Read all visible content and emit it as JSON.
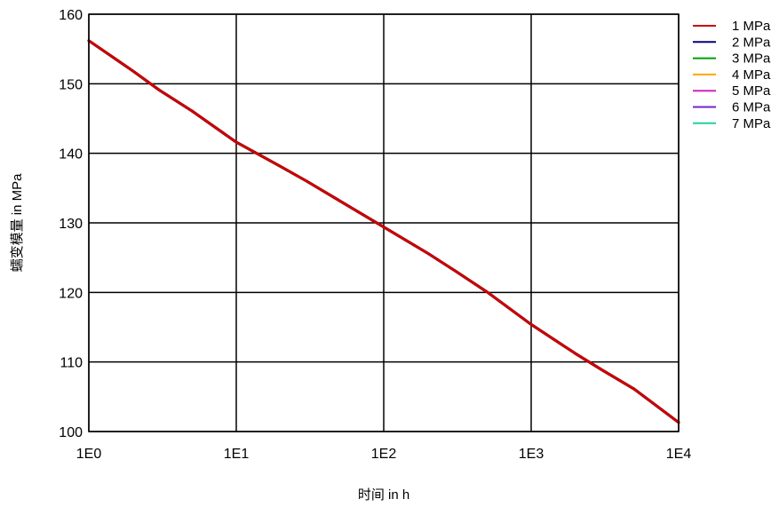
{
  "chart_data": {
    "type": "line",
    "xlabel": "时间 in h",
    "ylabel": "蠕变模量 in MPa",
    "xscale": "log",
    "xlim": [
      1,
      10000
    ],
    "ylim": [
      100,
      160
    ],
    "x_ticks": [
      1,
      10,
      100,
      1000,
      10000
    ],
    "x_tick_labels": [
      "1E0",
      "1E1",
      "1E2",
      "1E3",
      "1E4"
    ],
    "y_ticks": [
      100,
      110,
      120,
      130,
      140,
      150,
      160
    ],
    "y_tick_labels": [
      "100",
      "110",
      "120",
      "130",
      "140",
      "150",
      "160"
    ],
    "grid": true,
    "legend_position": "top-right, outside plot",
    "series": [
      {
        "name": "1 MPa",
        "color": "#cc0000"
      },
      {
        "name": "2 MPa",
        "color": "#000080"
      },
      {
        "name": "3 MPa",
        "color": "#00a000"
      },
      {
        "name": "4 MPa",
        "color": "#ffa500"
      },
      {
        "name": "5 MPa",
        "color": "#d020c0"
      },
      {
        "name": "6 MPa",
        "color": "#7a1fd0"
      },
      {
        "name": "7 MPa",
        "color": "#20d0a0"
      }
    ],
    "x": [
      1,
      2,
      3,
      5,
      10,
      20,
      30,
      50,
      100,
      200,
      300,
      500,
      1000,
      2000,
      3000,
      5000,
      10000
    ],
    "y": [
      156.2,
      151.8,
      149.1,
      146.1,
      141.6,
      138.1,
      136.0,
      133.2,
      129.4,
      125.6,
      123.2,
      120.1,
      115.4,
      111.2,
      108.9,
      106.1,
      101.3
    ]
  }
}
